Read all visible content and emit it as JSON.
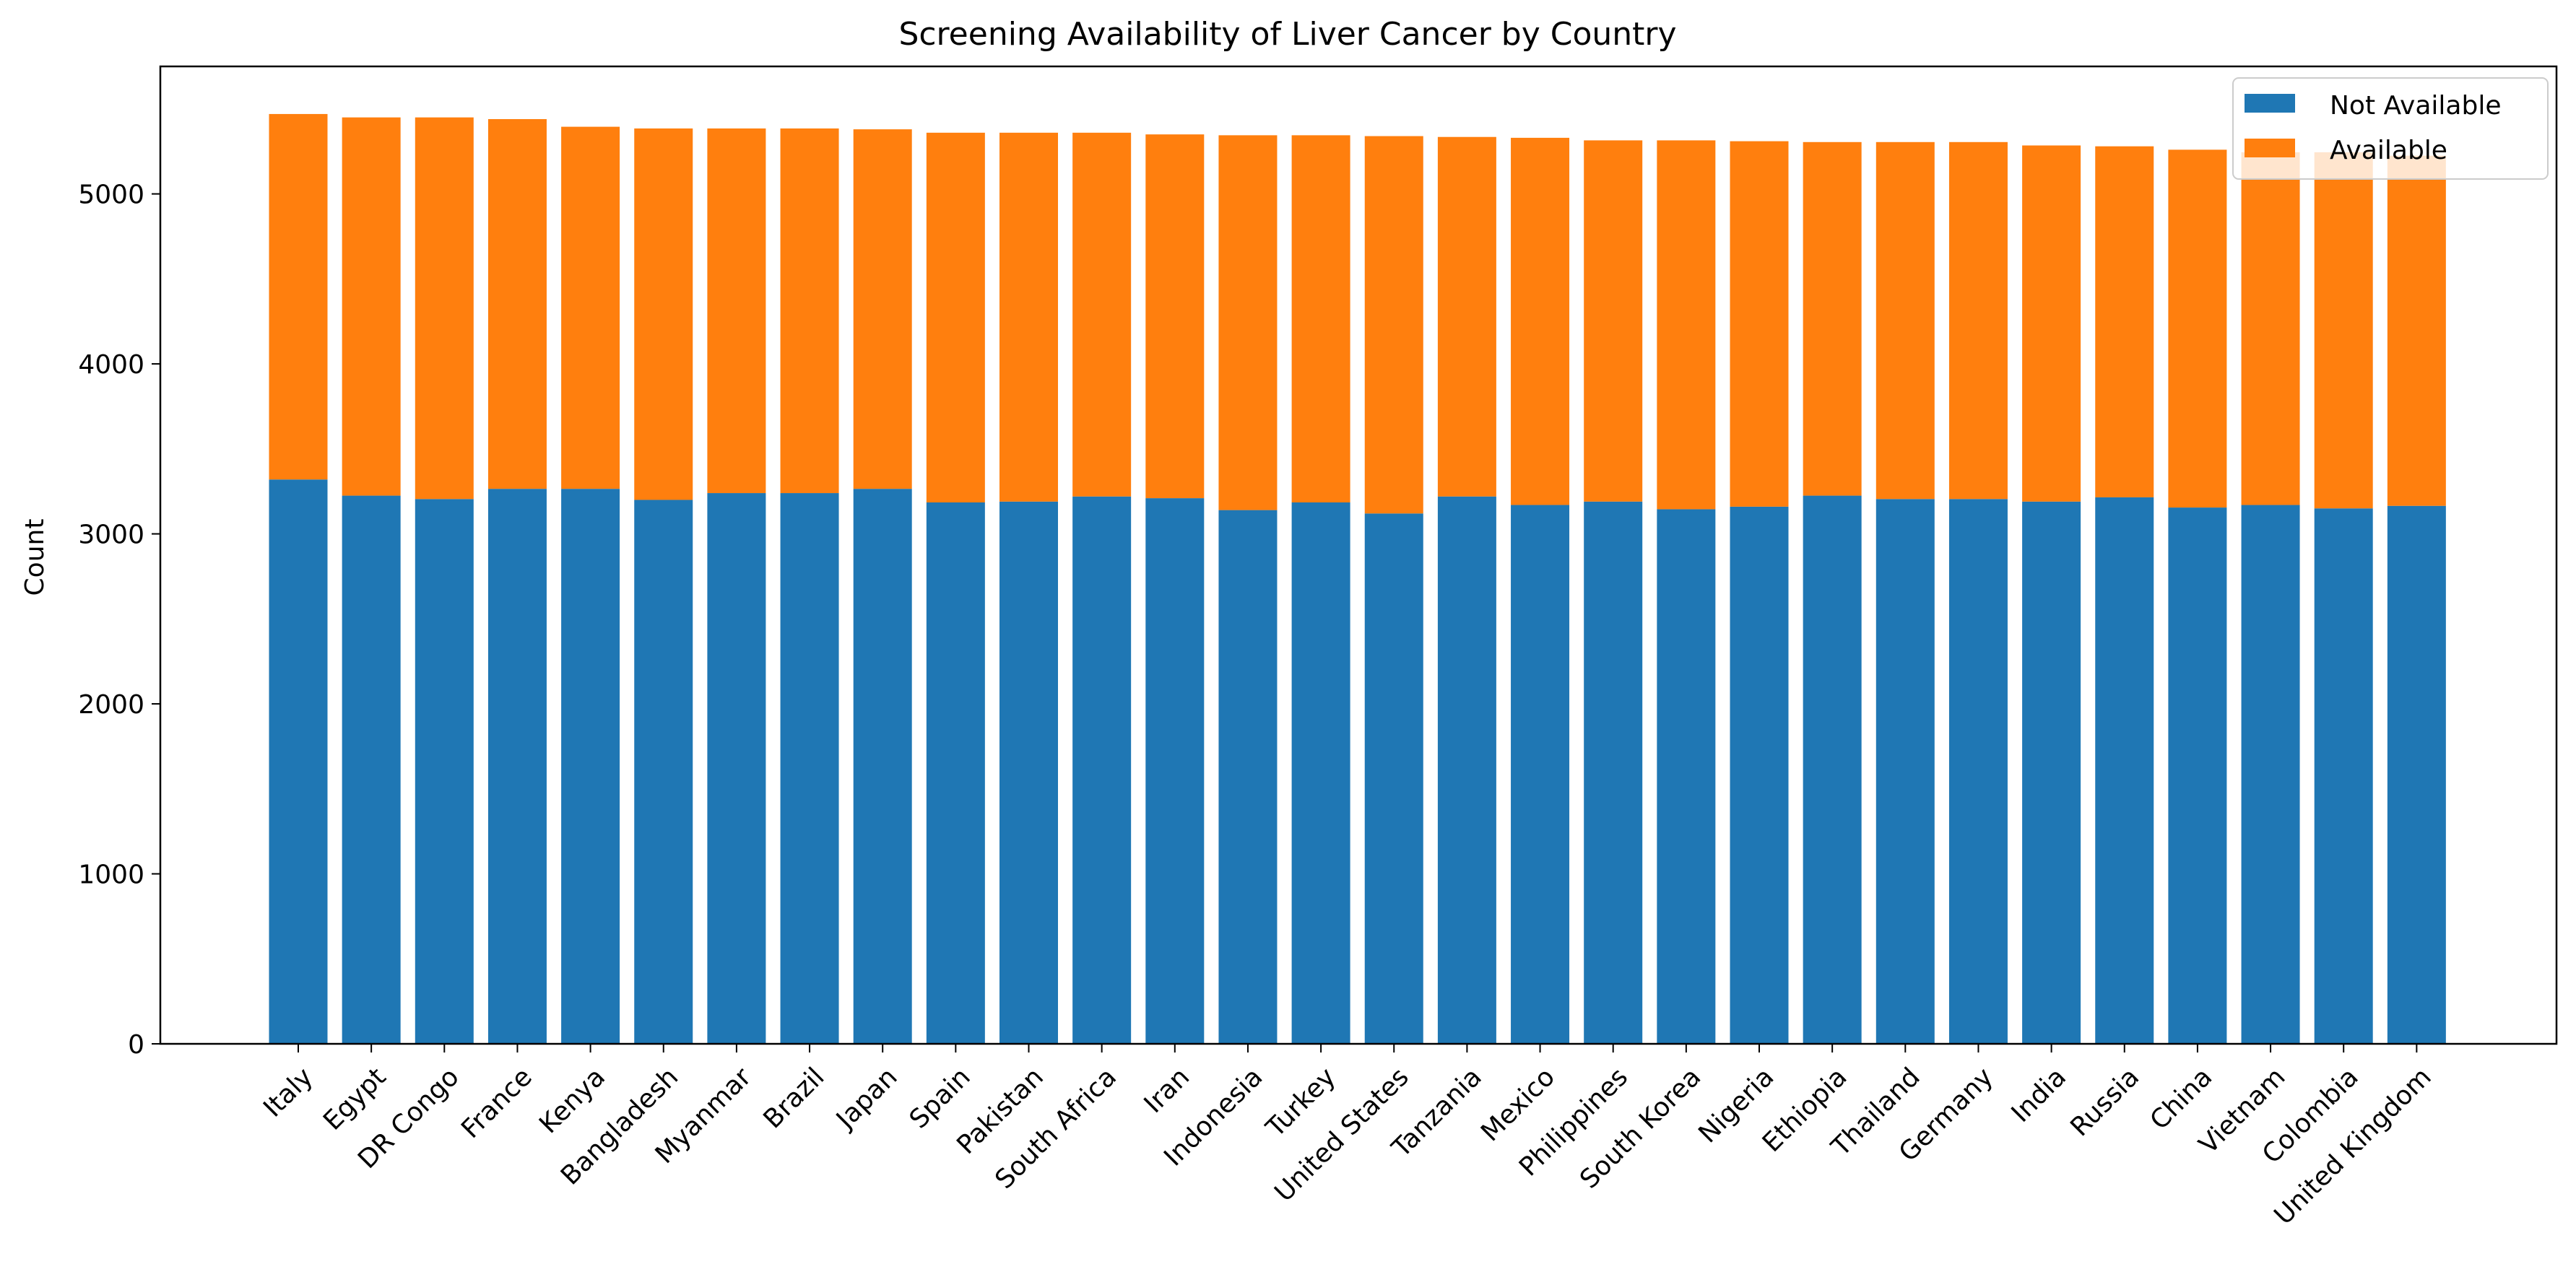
{
  "chart_data": {
    "type": "bar",
    "stacked": true,
    "title": "Screening Availability of Liver Cancer by Country",
    "xlabel": "",
    "ylabel": "Count",
    "ylim": [
      0,
      5750
    ],
    "yticks": [
      0,
      1000,
      2000,
      3000,
      4000,
      5000
    ],
    "grid": false,
    "legend_position": "top-right",
    "categories": [
      "Italy",
      "Egypt",
      "DR Congo",
      "France",
      "Kenya",
      "Bangladesh",
      "Myanmar",
      "Brazil",
      "Japan",
      "Spain",
      "Pakistan",
      "South Africa",
      "Iran",
      "Indonesia",
      "Turkey",
      "United States",
      "Tanzania",
      "Mexico",
      "Philippines",
      "South Korea",
      "Nigeria",
      "Ethiopia",
      "Thailand",
      "Germany",
      "India",
      "Russia",
      "China",
      "Vietnam",
      "Colombia",
      "United Kingdom"
    ],
    "series": [
      {
        "name": "Not Available",
        "color": "#1f77b4",
        "values": [
          3320,
          3225,
          3205,
          3265,
          3265,
          3200,
          3240,
          3240,
          3265,
          3185,
          3190,
          3220,
          3210,
          3140,
          3185,
          3120,
          3220,
          3170,
          3190,
          3145,
          3160,
          3225,
          3205,
          3205,
          3190,
          3215,
          3155,
          3170,
          3150,
          3165
        ]
      },
      {
        "name": "Available",
        "color": "#ff7f0e",
        "values": [
          2150,
          2225,
          2245,
          2175,
          2130,
          2185,
          2145,
          2145,
          2115,
          2175,
          2170,
          2140,
          2140,
          2205,
          2160,
          2220,
          2115,
          2160,
          2125,
          2170,
          2150,
          2080,
          2100,
          2100,
          2095,
          2065,
          2105,
          2075,
          2095,
          2060
        ]
      }
    ]
  }
}
